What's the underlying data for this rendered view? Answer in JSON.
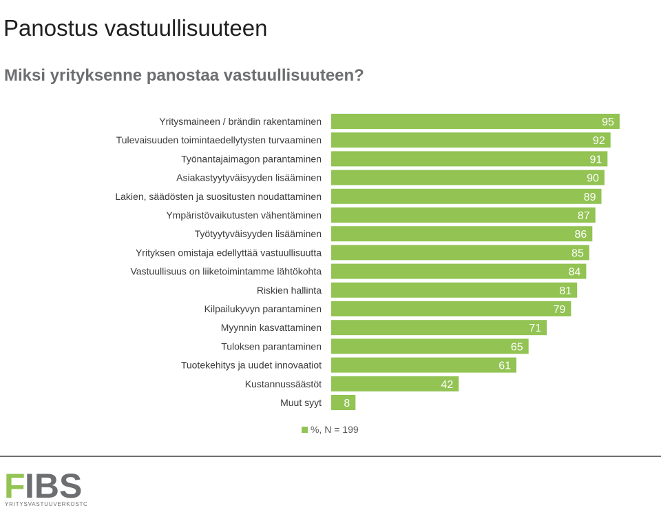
{
  "header": {
    "title": "Panostus vastuullisuuteen",
    "subtitle": "Miksi yrityksenne panostaa vastuullisuuteen?"
  },
  "chart_data": {
    "type": "bar",
    "orientation": "horizontal",
    "categories": [
      "Yritysmaineen / brändin rakentaminen",
      "Tulevaisuuden toimintaedellytysten turvaaminen",
      "Työnantajaimagon parantaminen",
      "Asiakastyytyväisyyden lisääminen",
      "Lakien, säädösten ja suositusten noudattaminen",
      "Ympäristövaikutusten vähentäminen",
      "Työtyytyväisyyden lisääminen",
      "Yrityksen omistaja edellyttää vastuullisuutta",
      "Vastuullisuus on liiketoimintamme lähtökohta",
      "Riskien hallinta",
      "Kilpailukyvyn parantaminen",
      "Myynnin kasvattaminen",
      "Tuloksen parantaminen",
      "Tuotekehitys ja uudet innovaatiot",
      "Kustannussäästöt",
      "Muut syyt"
    ],
    "series": [
      {
        "name": "%, N = 199",
        "values": [
          95,
          92,
          91,
          90,
          89,
          87,
          86,
          85,
          84,
          81,
          79,
          71,
          65,
          61,
          42,
          8
        ]
      }
    ],
    "xlim": [
      0,
      100
    ],
    "grid": false,
    "legend_position": "bottom",
    "bar_color": "#92c353",
    "data_labels": true
  },
  "footer": {
    "logo": {
      "brand": "FIBS",
      "tagline": "YRITYSVASTUUVERKOSTO",
      "grey": "#6d6e71",
      "green": "#92c353"
    }
  }
}
